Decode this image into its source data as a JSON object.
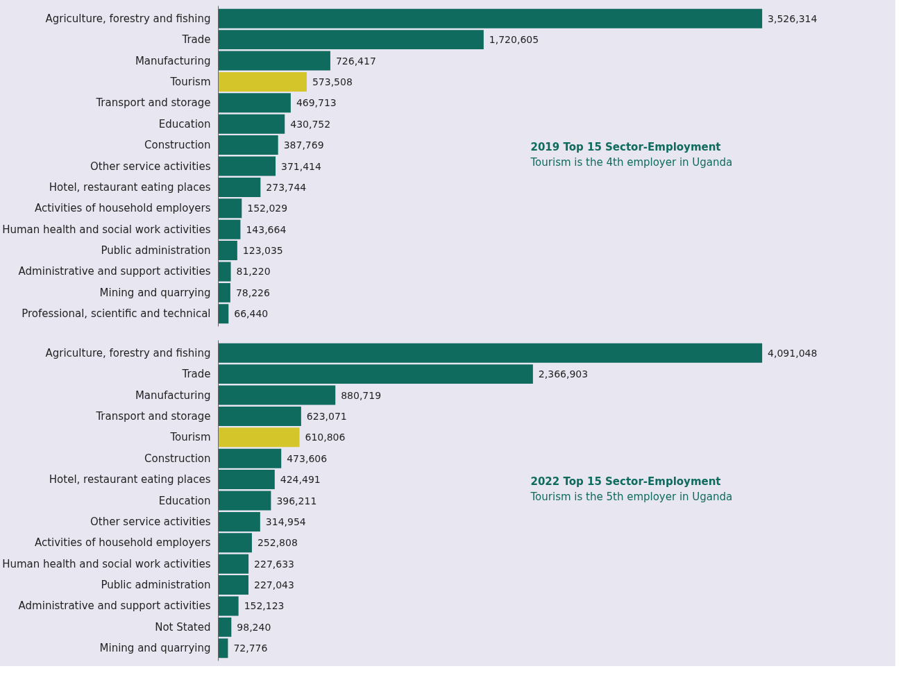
{
  "chart_data": [
    {
      "type": "bar",
      "orientation": "horizontal",
      "annotations": [
        "2019 Top 15 Sector-Employment",
        "Tourism is the 4th employer in Uganda"
      ],
      "categories": [
        "Agriculture, forestry and fishing",
        "Trade",
        "Manufacturing",
        "Tourism",
        "Transport and storage",
        "Education",
        "Construction",
        "Other service activities",
        "Hotel, restaurant eating places",
        "Activities of household employers",
        "Human health and social work activities",
        "Public administration",
        "Administrative and support activities",
        "Mining and quarrying",
        "Professional, scientific and technical"
      ],
      "values": [
        3526314,
        1720605,
        726417,
        573508,
        469713,
        430752,
        387769,
        371414,
        273744,
        152029,
        143664,
        123035,
        81220,
        78226,
        66440
      ],
      "value_labels": [
        "3,526,314",
        "1,720,605",
        "726,417",
        "573,508",
        "469,713",
        "430,752",
        "387,769",
        "371,414",
        "273,744",
        "152,029",
        "143,664",
        "123,035",
        "81,220",
        "78,226",
        "66,440"
      ],
      "colors": [
        "#0e6b5e",
        "#0e6b5e",
        "#0e6b5e",
        "#d4c62a",
        "#0e6b5e",
        "#0e6b5e",
        "#0e6b5e",
        "#0e6b5e",
        "#0e6b5e",
        "#0e6b5e",
        "#0e6b5e",
        "#0e6b5e",
        "#0e6b5e",
        "#0e6b5e",
        "#0e6b5e"
      ],
      "tick_labels": "y",
      "grid": false
    },
    {
      "type": "bar",
      "orientation": "horizontal",
      "annotations": [
        "2022 Top 15 Sector-Employment",
        "Tourism is the 5th employer in Uganda"
      ],
      "categories": [
        "Agriculture, forestry and fishing",
        "Trade",
        "Manufacturing",
        "Transport and storage",
        "Tourism",
        "Construction",
        "Hotel, restaurant eating places",
        "Education",
        "Other service activities",
        "Activities of household employers",
        "Human health and social work activities",
        "Public administration",
        "Administrative and support activities",
        "Not Stated",
        "Mining and quarrying"
      ],
      "values": [
        4091048,
        2366903,
        880719,
        623071,
        610806,
        473606,
        424491,
        396211,
        314954,
        252808,
        227633,
        227043,
        152123,
        98240,
        72776
      ],
      "value_labels": [
        "4,091,048",
        "2,366,903",
        "880,719",
        "623,071",
        "610,806",
        "473,606",
        "424,491",
        "396,211",
        "314,954",
        "252,808",
        "227,633",
        "227,043",
        "152,123",
        "98,240",
        "72,776"
      ],
      "colors": [
        "#0e6b5e",
        "#0e6b5e",
        "#0e6b5e",
        "#0e6b5e",
        "#d4c62a",
        "#0e6b5e",
        "#0e6b5e",
        "#0e6b5e",
        "#0e6b5e",
        "#0e6b5e",
        "#0e6b5e",
        "#0e6b5e",
        "#0e6b5e",
        "#0e6b5e",
        "#0e6b5e"
      ],
      "tick_labels": "y",
      "grid": false
    }
  ]
}
